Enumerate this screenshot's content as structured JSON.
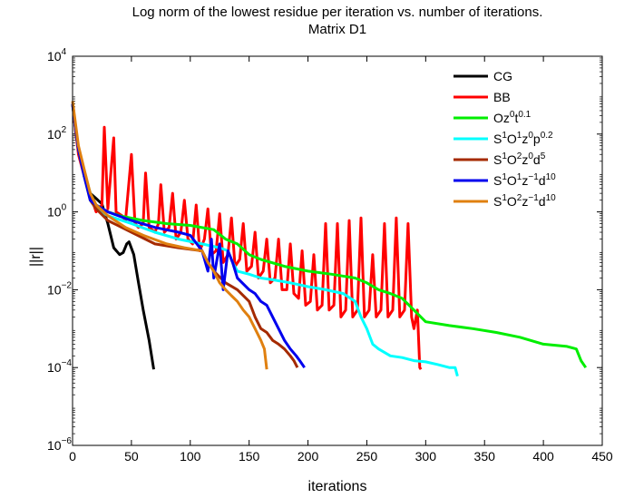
{
  "chart_data": {
    "type": "line",
    "title": "Log norm of the lowest residue per iteration vs. number of iterations.",
    "subtitle": "Matrix D1",
    "xlabel": "iterations",
    "ylabel": "||r||",
    "x_scale": "linear",
    "y_scale": "log",
    "xlim": [
      0,
      450
    ],
    "ylim": [
      1e-06,
      10000.0
    ],
    "x_ticks": [
      0,
      50,
      100,
      150,
      200,
      250,
      300,
      350,
      400,
      450
    ],
    "x_tick_labels": [
      "0",
      "50",
      "100",
      "150",
      "200",
      "250",
      "300",
      "350",
      "400",
      "450"
    ],
    "y_ticks": [
      1e-06,
      0.0001,
      0.01,
      1.0,
      100.0,
      10000.0
    ],
    "y_tick_labels": [
      {
        "base": "10",
        "exp": "−6"
      },
      {
        "base": "10",
        "exp": "−4"
      },
      {
        "base": "10",
        "exp": "−2"
      },
      {
        "base": "10",
        "exp": "0"
      },
      {
        "base": "10",
        "exp": "2"
      },
      {
        "base": "10",
        "exp": "4"
      }
    ],
    "grid": false,
    "legend_position": "top-right",
    "series": [
      {
        "name": "CG",
        "legend": [
          [
            "S",
            "CG"
          ]
        ],
        "color": "#000000",
        "points": [
          [
            0,
            600
          ],
          [
            3,
            90
          ],
          [
            6,
            30
          ],
          [
            10,
            8
          ],
          [
            15,
            3
          ],
          [
            20,
            2.2
          ],
          [
            25,
            1.6
          ],
          [
            30,
            0.5
          ],
          [
            35,
            0.12
          ],
          [
            40,
            0.08
          ],
          [
            43,
            0.09
          ],
          [
            46,
            0.15
          ],
          [
            48,
            0.17
          ],
          [
            52,
            0.08
          ],
          [
            56,
            0.015
          ],
          [
            60,
            0.003
          ],
          [
            65,
            0.0005
          ],
          [
            69,
            9e-05
          ]
        ]
      },
      {
        "name": "BB",
        "legend": [
          [
            "S",
            "BB"
          ]
        ],
        "color": "#ff0000",
        "points": [
          [
            0,
            600
          ],
          [
            5,
            30
          ],
          [
            10,
            8
          ],
          [
            15,
            3
          ],
          [
            18,
            1.5
          ],
          [
            20,
            1.0
          ],
          [
            25,
            1.5
          ],
          [
            27,
            150
          ],
          [
            30,
            1.2
          ],
          [
            35,
            80
          ],
          [
            37,
            1.0
          ],
          [
            42,
            0.8
          ],
          [
            45,
            0.6
          ],
          [
            50,
            30
          ],
          [
            53,
            0.5
          ],
          [
            56,
            0.4
          ],
          [
            60,
            0.5
          ],
          [
            62,
            10
          ],
          [
            65,
            0.4
          ],
          [
            70,
            0.3
          ],
          [
            73,
            0.5
          ],
          [
            75,
            5
          ],
          [
            78,
            0.3
          ],
          [
            82,
            0.4
          ],
          [
            85,
            3
          ],
          [
            88,
            0.2
          ],
          [
            92,
            0.3
          ],
          [
            95,
            2
          ],
          [
            98,
            0.2
          ],
          [
            102,
            0.15
          ],
          [
            105,
            1.5
          ],
          [
            108,
            0.1
          ],
          [
            112,
            0.2
          ],
          [
            115,
            1.2
          ],
          [
            118,
            0.08
          ],
          [
            122,
            0.1
          ],
          [
            125,
            0.9
          ],
          [
            128,
            0.05
          ],
          [
            132,
            0.08
          ],
          [
            135,
            0.7
          ],
          [
            138,
            0.04
          ],
          [
            142,
            0.06
          ],
          [
            145,
            0.5
          ],
          [
            148,
            0.03
          ],
          [
            152,
            0.04
          ],
          [
            155,
            0.3
          ],
          [
            158,
            0.02
          ],
          [
            162,
            0.03
          ],
          [
            165,
            0.2
          ],
          [
            168,
            0.015
          ],
          [
            172,
            0.02
          ],
          [
            175,
            0.2
          ],
          [
            178,
            0.01
          ],
          [
            182,
            0.01
          ],
          [
            185,
            0.15
          ],
          [
            188,
            0.008
          ],
          [
            192,
            0.006
          ],
          [
            195,
            0.1
          ],
          [
            198,
            0.004
          ],
          [
            202,
            0.005
          ],
          [
            205,
            0.08
          ],
          [
            208,
            0.003
          ],
          [
            212,
            0.004
          ],
          [
            215,
            0.5
          ],
          [
            218,
            0.003
          ],
          [
            222,
            0.004
          ],
          [
            225,
            0.5
          ],
          [
            228,
            0.002
          ],
          [
            232,
            0.003
          ],
          [
            235,
            0.6
          ],
          [
            238,
            0.002
          ],
          [
            242,
            0.003
          ],
          [
            245,
            0.7
          ],
          [
            248,
            0.002
          ],
          [
            252,
            0.003
          ],
          [
            255,
            0.08
          ],
          [
            258,
            0.002
          ],
          [
            262,
            0.003
          ],
          [
            265,
            0.5
          ],
          [
            268,
            0.002
          ],
          [
            272,
            0.003
          ],
          [
            275,
            0.7
          ],
          [
            278,
            0.002
          ],
          [
            282,
            0.003
          ],
          [
            285,
            0.5
          ],
          [
            288,
            0.002
          ],
          [
            290,
            0.001
          ],
          [
            293,
            0.003
          ],
          [
            295,
            0.0001
          ],
          [
            296,
            9e-05
          ]
        ]
      },
      {
        "name": "Oz0t0.1",
        "legend": [
          [
            "S",
            "Oz"
          ],
          [
            "P",
            "0"
          ],
          [
            "S",
            "t"
          ],
          [
            "P",
            "0.1"
          ]
        ],
        "color": "#00ee00",
        "points": [
          [
            0,
            600
          ],
          [
            5,
            40
          ],
          [
            10,
            10
          ],
          [
            15,
            3
          ],
          [
            20,
            1.5
          ],
          [
            30,
            1.0
          ],
          [
            40,
            0.8
          ],
          [
            60,
            0.6
          ],
          [
            80,
            0.5
          ],
          [
            100,
            0.45
          ],
          [
            120,
            0.35
          ],
          [
            130,
            0.2
          ],
          [
            140,
            0.15
          ],
          [
            150,
            0.08
          ],
          [
            160,
            0.06
          ],
          [
            180,
            0.04
          ],
          [
            200,
            0.03
          ],
          [
            220,
            0.025
          ],
          [
            240,
            0.02
          ],
          [
            250,
            0.015
          ],
          [
            260,
            0.01
          ],
          [
            270,
            0.008
          ],
          [
            280,
            0.006
          ],
          [
            300,
            0.0015
          ],
          [
            320,
            0.0012
          ],
          [
            340,
            0.001
          ],
          [
            360,
            0.0008
          ],
          [
            380,
            0.0006
          ],
          [
            400,
            0.0004
          ],
          [
            420,
            0.00035
          ],
          [
            428,
            0.0003
          ],
          [
            432,
            0.00015
          ],
          [
            436,
            0.0001
          ]
        ]
      },
      {
        "name": "S1O1z0p0.2",
        "legend": [
          [
            "S",
            "S"
          ],
          [
            "P",
            "1"
          ],
          [
            "S",
            "O"
          ],
          [
            "P",
            "1"
          ],
          [
            "S",
            "z"
          ],
          [
            "P",
            "0"
          ],
          [
            "S",
            "p"
          ],
          [
            "P",
            "0.2"
          ]
        ],
        "color": "#00ffff",
        "points": [
          [
            0,
            600
          ],
          [
            5,
            40
          ],
          [
            10,
            8
          ],
          [
            15,
            2
          ],
          [
            20,
            1.2
          ],
          [
            30,
            0.8
          ],
          [
            50,
            0.5
          ],
          [
            70,
            0.3
          ],
          [
            90,
            0.2
          ],
          [
            110,
            0.15
          ],
          [
            125,
            0.12
          ],
          [
            132,
            0.1
          ],
          [
            136,
            0.05
          ],
          [
            140,
            0.03
          ],
          [
            150,
            0.025
          ],
          [
            160,
            0.02
          ],
          [
            170,
            0.018
          ],
          [
            185,
            0.015
          ],
          [
            200,
            0.012
          ],
          [
            215,
            0.01
          ],
          [
            230,
            0.008
          ],
          [
            240,
            0.005
          ],
          [
            245,
            0.002
          ],
          [
            250,
            0.001
          ],
          [
            255,
            0.0004
          ],
          [
            260,
            0.0003
          ],
          [
            270,
            0.0002
          ],
          [
            280,
            0.00018
          ],
          [
            290,
            0.00015
          ],
          [
            300,
            0.00014
          ],
          [
            310,
            0.00012
          ],
          [
            320,
            0.0001
          ],
          [
            325,
            0.0001
          ],
          [
            327,
            6e-05
          ]
        ]
      },
      {
        "name": "S1O2z0d5",
        "legend": [
          [
            "S",
            "S"
          ],
          [
            "P",
            "1"
          ],
          [
            "S",
            "O"
          ],
          [
            "P",
            "2"
          ],
          [
            "S",
            "z"
          ],
          [
            "P",
            "0"
          ],
          [
            "S",
            "d"
          ],
          [
            "P",
            "5"
          ]
        ],
        "color": "#a52a00",
        "points": [
          [
            0,
            600
          ],
          [
            5,
            40
          ],
          [
            10,
            8
          ],
          [
            15,
            2
          ],
          [
            20,
            1.2
          ],
          [
            30,
            0.6
          ],
          [
            50,
            0.3
          ],
          [
            70,
            0.15
          ],
          [
            90,
            0.12
          ],
          [
            110,
            0.1
          ],
          [
            115,
            0.05
          ],
          [
            120,
            0.03
          ],
          [
            130,
            0.015
          ],
          [
            140,
            0.01
          ],
          [
            150,
            0.005
          ],
          [
            155,
            0.002
          ],
          [
            160,
            0.001
          ],
          [
            165,
            0.0008
          ],
          [
            170,
            0.0005
          ],
          [
            175,
            0.0004
          ],
          [
            180,
            0.0003
          ],
          [
            185,
            0.0002
          ],
          [
            188,
            0.00015
          ],
          [
            191,
            0.0001
          ]
        ]
      },
      {
        "name": "S1O1z−1d10",
        "legend": [
          [
            "S",
            "S"
          ],
          [
            "P",
            "1"
          ],
          [
            "S",
            "O"
          ],
          [
            "P",
            "1"
          ],
          [
            "S",
            "z"
          ],
          [
            "P",
            "−1"
          ],
          [
            "S",
            "d"
          ],
          [
            "P",
            "10"
          ]
        ],
        "color": "#0000ee",
        "points": [
          [
            0,
            600
          ],
          [
            5,
            40
          ],
          [
            10,
            8
          ],
          [
            15,
            2
          ],
          [
            20,
            1.5
          ],
          [
            30,
            1.0
          ],
          [
            50,
            0.6
          ],
          [
            70,
            0.4
          ],
          [
            90,
            0.3
          ],
          [
            100,
            0.25
          ],
          [
            110,
            0.1
          ],
          [
            115,
            0.03
          ],
          [
            118,
            0.2
          ],
          [
            120,
            0.02
          ],
          [
            125,
            0.15
          ],
          [
            128,
            0.01
          ],
          [
            132,
            0.1
          ],
          [
            136,
            0.05
          ],
          [
            140,
            0.02
          ],
          [
            150,
            0.01
          ],
          [
            155,
            0.008
          ],
          [
            160,
            0.005
          ],
          [
            165,
            0.004
          ],
          [
            170,
            0.002
          ],
          [
            175,
            0.001
          ],
          [
            180,
            0.0005
          ],
          [
            185,
            0.0003
          ],
          [
            190,
            0.0002
          ],
          [
            193,
            0.00015
          ],
          [
            197,
            0.0001
          ]
        ]
      },
      {
        "name": "S1O2z−1d10",
        "legend": [
          [
            "S",
            "S"
          ],
          [
            "P",
            "1"
          ],
          [
            "S",
            "O"
          ],
          [
            "P",
            "2"
          ],
          [
            "S",
            "z"
          ],
          [
            "P",
            "−1"
          ],
          [
            "S",
            "d"
          ],
          [
            "P",
            "10"
          ]
        ],
        "color": "#e08010",
        "points": [
          [
            0,
            700
          ],
          [
            5,
            50
          ],
          [
            10,
            12
          ],
          [
            15,
            3
          ],
          [
            20,
            1.5
          ],
          [
            30,
            0.8
          ],
          [
            45,
            0.4
          ],
          [
            60,
            0.25
          ],
          [
            80,
            0.15
          ],
          [
            95,
            0.12
          ],
          [
            110,
            0.1
          ],
          [
            115,
            0.05
          ],
          [
            120,
            0.03
          ],
          [
            125,
            0.015
          ],
          [
            130,
            0.01
          ],
          [
            135,
            0.007
          ],
          [
            140,
            0.005
          ],
          [
            145,
            0.003
          ],
          [
            150,
            0.002
          ],
          [
            155,
            0.001
          ],
          [
            160,
            0.0005
          ],
          [
            163,
            0.0003
          ],
          [
            165,
            9e-05
          ]
        ]
      }
    ]
  }
}
